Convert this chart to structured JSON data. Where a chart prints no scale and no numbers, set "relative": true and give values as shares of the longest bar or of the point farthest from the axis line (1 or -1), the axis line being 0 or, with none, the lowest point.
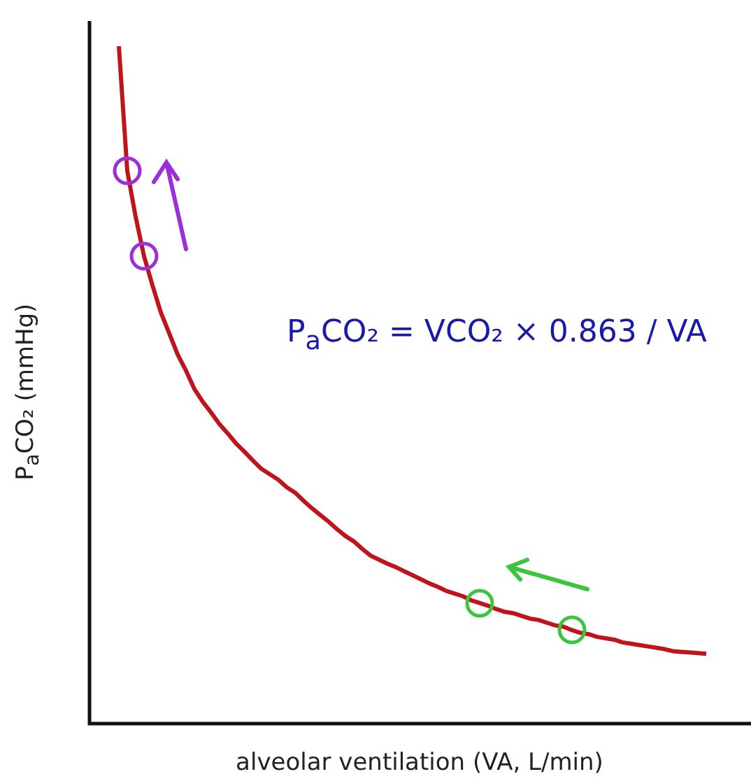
{
  "chart_data": {
    "type": "line",
    "relative": true,
    "xlabel": "alveolar ventilation (VA, L/min)",
    "ylabel": "P$_{a}$CO₂ (mmHg)",
    "annotations": [
      "P$_{a}$CO₂ = VCO₂ × 0.863 / VA"
    ],
    "categories": [
      null,
      null,
      null,
      null,
      null,
      null,
      null,
      null,
      null,
      null,
      null,
      null,
      null,
      null,
      null,
      null,
      null,
      null,
      null,
      null,
      null,
      null,
      null,
      null,
      null,
      null,
      null,
      null,
      null,
      null,
      null,
      null,
      null,
      null,
      null,
      null,
      null,
      null,
      null,
      null,
      null,
      null,
      null,
      null,
      null,
      null,
      null,
      null,
      null,
      null,
      null,
      null,
      null,
      null,
      null,
      null,
      null,
      null,
      null,
      null,
      null,
      null,
      null,
      null,
      null,
      null,
      null,
      null,
      null,
      null,
      null
    ],
    "series": [
      {
        "color": "#c0141c",
        "values": [
          1.0,
          0.816,
          0.748,
          0.69,
          0.647,
          0.607,
          0.576,
          0.545,
          0.521,
          0.494,
          0.475,
          0.459,
          0.442,
          0.428,
          0.413,
          0.401,
          0.388,
          0.376,
          0.368,
          0.36,
          0.349,
          0.341,
          0.329,
          0.318,
          0.308,
          0.298,
          0.287,
          0.277,
          0.269,
          0.258,
          0.248,
          0.242,
          0.236,
          0.231,
          0.225,
          0.219,
          0.213,
          0.207,
          0.202,
          0.196,
          0.192,
          0.188,
          0.182,
          0.178,
          0.174,
          0.169,
          0.165,
          0.163,
          0.159,
          0.155,
          0.153,
          0.149,
          0.145,
          0.143,
          0.138,
          0.134,
          0.132,
          0.128,
          0.126,
          0.124,
          0.12,
          0.118,
          0.116,
          0.114,
          0.112,
          0.11,
          0.107,
          0.106,
          0.105,
          0.104,
          0.103
        ]
      }
    ]
  }
}
